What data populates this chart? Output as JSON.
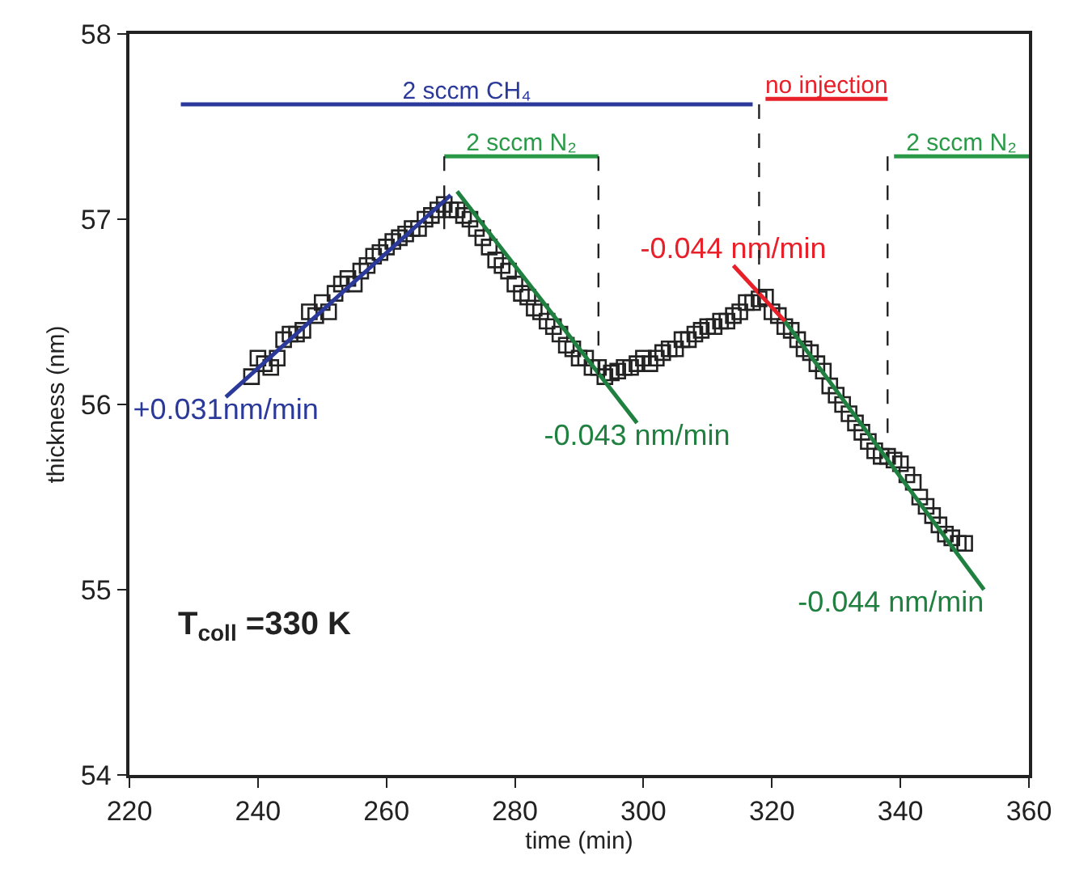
{
  "chart_data": {
    "type": "scatter",
    "xlabel": "time (min)",
    "ylabel": "thickness (nm)",
    "xlim": [
      220,
      360
    ],
    "xticks": [
      220,
      240,
      260,
      280,
      300,
      320,
      340,
      360
    ],
    "ylim": [
      54,
      58
    ],
    "yticks": [
      54,
      55,
      56,
      57,
      58
    ],
    "legend": false,
    "annotations": [
      "T$_{coll}$ =330 K"
    ],
    "series": [
      {
        "marker": "square",
        "color": "#222222",
        "x": [
          239,
          240,
          241,
          242,
          243,
          244,
          245,
          246,
          247,
          248,
          249,
          250,
          251,
          252,
          253,
          254,
          255,
          256,
          257,
          258,
          259,
          260,
          261,
          262,
          263,
          264,
          265,
          266,
          267,
          268,
          269,
          270,
          271,
          272,
          273,
          274,
          275,
          276,
          277,
          278,
          279,
          280,
          281,
          282,
          283,
          284,
          285,
          286,
          287,
          288,
          289,
          290,
          291,
          292,
          293,
          294,
          295,
          296,
          297,
          298,
          299,
          300,
          301,
          302,
          303,
          304,
          305,
          306,
          307,
          308,
          309,
          310,
          311,
          312,
          313,
          314,
          315,
          316,
          317,
          318,
          319,
          320,
          321,
          322,
          323,
          324,
          325,
          326,
          327,
          328,
          329,
          330,
          331,
          332,
          333,
          334,
          335,
          336,
          337,
          338,
          339,
          340,
          341,
          342,
          343,
          344,
          345,
          346,
          347,
          348,
          349,
          350
        ],
        "values": [
          56.15,
          56.25,
          56.22,
          56.2,
          56.25,
          56.35,
          56.38,
          56.38,
          56.4,
          56.5,
          56.48,
          56.55,
          56.5,
          56.6,
          56.65,
          56.68,
          56.65,
          56.72,
          56.75,
          56.8,
          56.82,
          56.85,
          56.88,
          56.9,
          56.92,
          56.95,
          56.95,
          57.0,
          57.02,
          57.05,
          57.08,
          57.05,
          57.05,
          57.02,
          57.0,
          56.95,
          56.9,
          56.85,
          56.78,
          56.75,
          56.72,
          56.65,
          56.6,
          56.58,
          56.52,
          56.5,
          56.45,
          56.42,
          56.38,
          56.32,
          56.3,
          56.25,
          56.25,
          56.2,
          56.2,
          56.15,
          56.17,
          56.18,
          56.2,
          56.2,
          56.22,
          56.25,
          56.22,
          56.25,
          56.28,
          56.3,
          56.3,
          56.35,
          56.35,
          56.38,
          56.4,
          56.42,
          56.42,
          56.45,
          56.45,
          56.48,
          56.5,
          56.55,
          56.55,
          56.57,
          56.58,
          56.5,
          56.48,
          56.42,
          56.4,
          56.35,
          56.3,
          56.28,
          56.22,
          56.18,
          56.1,
          56.05,
          56.0,
          55.95,
          55.9,
          55.85,
          55.8,
          55.75,
          55.72,
          55.72,
          55.7,
          55.68,
          55.62,
          55.58,
          55.5,
          55.45,
          55.4,
          55.35,
          55.3,
          55.28,
          55.25,
          55.25
        ]
      },
      {
        "type": "line",
        "name": "+0.031nm/min",
        "color": "#2b3a9a",
        "x": [
          235,
          270
        ],
        "values": [
          56.04,
          57.13
        ]
      },
      {
        "type": "line",
        "name": "-0.043 nm/min",
        "color": "#1f8040",
        "x": [
          271,
          299
        ],
        "values": [
          57.15,
          55.9
        ]
      },
      {
        "type": "line",
        "name": "-0.044 nm/min",
        "color": "#e8202a",
        "x": [
          314,
          322
        ],
        "values": [
          56.75,
          56.45
        ]
      },
      {
        "type": "line",
        "name": "-0.044 nm/min",
        "color": "#1f8040",
        "x": [
          322,
          353
        ],
        "values": [
          56.45,
          55.0
        ]
      },
      {
        "type": "line",
        "name": "2 sccm CH₄",
        "color": "#2b3a9a",
        "x": [
          228,
          317
        ],
        "values": [
          57.62,
          57.62
        ]
      },
      {
        "type": "line",
        "name": "2 sccm N₂",
        "color": "#2a9a48",
        "x": [
          269,
          293
        ],
        "values": [
          57.34,
          57.34
        ]
      },
      {
        "type": "line",
        "name": "no injection",
        "color": "#e8202a",
        "x": [
          319,
          338
        ],
        "values": [
          57.65,
          57.65
        ]
      },
      {
        "type": "line",
        "name": "2 sccm N₂",
        "color": "#2a9a48",
        "x": [
          339,
          360
        ],
        "values": [
          57.34,
          57.34
        ]
      },
      {
        "type": "line",
        "line_style": "dashed",
        "color": "#222222",
        "x": [
          269,
          269
        ],
        "values": [
          57.34,
          56.94
        ]
      },
      {
        "type": "line",
        "line_style": "dashed",
        "color": "#222222",
        "x": [
          293,
          293
        ],
        "values": [
          57.34,
          56.15
        ]
      },
      {
        "type": "line",
        "line_style": "dashed",
        "color": "#222222",
        "x": [
          318,
          318
        ],
        "values": [
          57.62,
          56.59
        ]
      },
      {
        "type": "line",
        "line_style": "dashed",
        "color": "#222222",
        "x": [
          338,
          338
        ],
        "values": [
          57.34,
          55.83
        ]
      }
    ]
  }
}
